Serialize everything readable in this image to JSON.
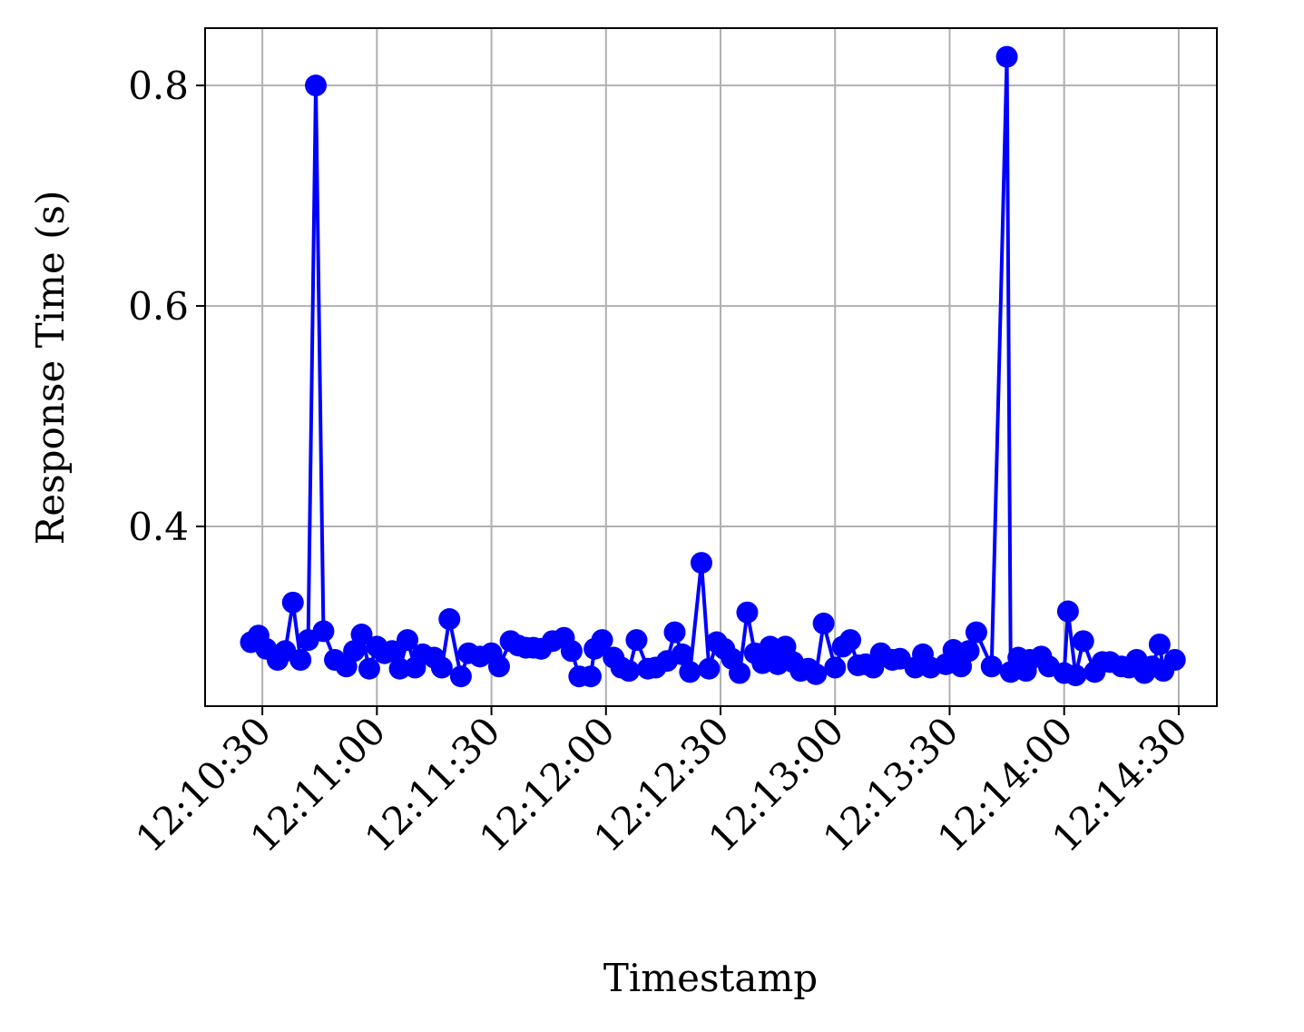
{
  "chart_data": {
    "type": "line",
    "x_label": "Timestamp",
    "y_label": "Response Time (s)",
    "x": [
      "12:10:27",
      "12:10:29",
      "12:10:31",
      "12:10:34",
      "12:10:36",
      "12:10:38",
      "12:10:40",
      "12:10:42",
      "12:10:44",
      "12:10:46",
      "12:10:49",
      "12:10:52",
      "12:10:54",
      "12:10:56",
      "12:10:58",
      "12:11:00",
      "12:11:02",
      "12:11:04",
      "12:11:06",
      "12:11:08",
      "12:11:10",
      "12:11:12",
      "12:11:15",
      "12:11:17",
      "12:11:19",
      "12:11:22",
      "12:11:24",
      "12:11:27",
      "12:11:30",
      "12:11:32",
      "12:11:35",
      "12:11:37",
      "12:11:39",
      "12:11:41",
      "12:11:43",
      "12:11:46",
      "12:11:49",
      "12:11:51",
      "12:11:53",
      "12:11:56",
      "12:11:57",
      "12:11:59",
      "12:12:02",
      "12:12:04",
      "12:12:06",
      "12:12:08",
      "12:12:11",
      "12:12:13",
      "12:12:16",
      "12:12:18",
      "12:12:20",
      "12:12:22",
      "12:12:25",
      "12:12:27",
      "12:12:29",
      "12:12:31",
      "12:12:33",
      "12:12:35",
      "12:12:37",
      "12:12:39",
      "12:12:41",
      "12:12:43",
      "12:12:45",
      "12:12:47",
      "12:12:49",
      "12:12:51",
      "12:12:53",
      "12:12:55",
      "12:12:57",
      "12:13:00",
      "12:13:02",
      "12:13:04",
      "12:13:06",
      "12:13:08",
      "12:13:10",
      "12:13:12",
      "12:13:15",
      "12:13:17",
      "12:13:21",
      "12:13:23",
      "12:13:25",
      "12:13:29",
      "12:13:31",
      "12:13:33",
      "12:13:35",
      "12:13:37",
      "12:13:41",
      "12:13:45",
      "12:13:46",
      "12:13:48",
      "12:13:50",
      "12:13:51",
      "12:13:54",
      "12:13:56",
      "12:14:00",
      "12:14:01",
      "12:14:03",
      "12:14:05",
      "12:14:08",
      "12:14:10",
      "12:14:12",
      "12:14:15",
      "12:14:17",
      "12:14:19",
      "12:14:21",
      "12:14:23",
      "12:14:25",
      "12:14:26",
      "12:14:29"
    ],
    "series": [
      {
        "name": "Response Time",
        "color": "#0000ff",
        "values": [
          0.295,
          0.301,
          0.289,
          0.279,
          0.287,
          0.331,
          0.279,
          0.297,
          0.8,
          0.305,
          0.279,
          0.273,
          0.287,
          0.302,
          0.271,
          0.291,
          0.285,
          0.287,
          0.271,
          0.297,
          0.272,
          0.284,
          0.281,
          0.272,
          0.316,
          0.264,
          0.285,
          0.282,
          0.285,
          0.273,
          0.296,
          0.292,
          0.29,
          0.29,
          0.289,
          0.296,
          0.299,
          0.287,
          0.264,
          0.264,
          0.289,
          0.297,
          0.281,
          0.272,
          0.269,
          0.297,
          0.271,
          0.272,
          0.278,
          0.304,
          0.284,
          0.268,
          0.367,
          0.271,
          0.295,
          0.289,
          0.28,
          0.267,
          0.322,
          0.285,
          0.276,
          0.291,
          0.275,
          0.291,
          0.277,
          0.269,
          0.271,
          0.266,
          0.312,
          0.272,
          0.291,
          0.297,
          0.274,
          0.275,
          0.272,
          0.285,
          0.279,
          0.28,
          0.272,
          0.284,
          0.272,
          0.275,
          0.288,
          0.273,
          0.287,
          0.304,
          0.273,
          0.826,
          0.268,
          0.281,
          0.269,
          0.279,
          0.282,
          0.273,
          0.267,
          0.323,
          0.265,
          0.296,
          0.268,
          0.277,
          0.277,
          0.273,
          0.272,
          0.279,
          0.267,
          0.273,
          0.293,
          0.269,
          0.279
        ]
      }
    ],
    "xlim": [
      "12:10:15",
      "12:14:40"
    ],
    "xticks": [
      "12:10:30",
      "12:11:00",
      "12:11:30",
      "12:12:00",
      "12:12:30",
      "12:13:00",
      "12:13:30",
      "12:14:00",
      "12:14:30"
    ],
    "ylim": [
      0.237,
      0.852
    ],
    "yticks": [
      0.4,
      0.6,
      0.8
    ],
    "grid": true
  }
}
